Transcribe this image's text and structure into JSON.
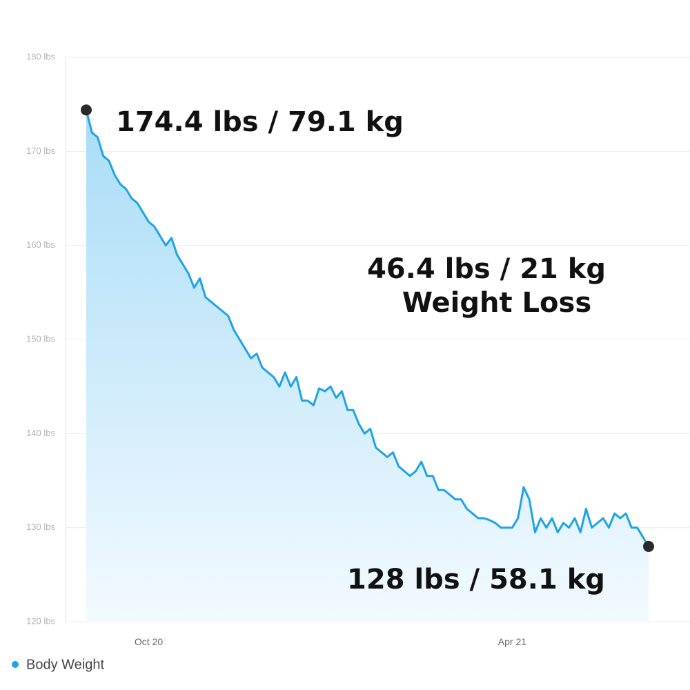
{
  "chart_data": {
    "type": "area",
    "categories": [
      null,
      null,
      null,
      null,
      null,
      null,
      null,
      null,
      null,
      null,
      null,
      "Oct 20",
      null,
      null,
      null,
      null,
      null,
      null,
      null,
      null,
      null,
      null,
      null,
      null,
      null,
      null,
      null,
      null,
      null,
      null,
      null,
      null,
      null,
      null,
      null,
      null,
      null,
      null,
      null,
      null,
      null,
      null,
      null,
      null,
      null,
      null,
      null,
      null,
      null,
      null,
      null,
      null,
      null,
      null,
      null,
      null,
      null,
      null,
      null,
      null,
      null,
      null,
      null,
      null,
      null,
      null,
      null,
      null,
      null,
      null,
      null,
      null,
      null,
      null,
      null,
      "Apr 21",
      null,
      null,
      null,
      null,
      null,
      null,
      null,
      null,
      null,
      null,
      null,
      null,
      null,
      null,
      null,
      null,
      null,
      null,
      null,
      null,
      null,
      null,
      null,
      null
    ],
    "series": [
      {
        "name": "Body Weight",
        "color": "#1ea3e6",
        "values": [
          174.4,
          172,
          171.5,
          169.5,
          169,
          167.5,
          166.5,
          166,
          165,
          164.5,
          163.5,
          162.5,
          162,
          161,
          160,
          160.8,
          159,
          158,
          157,
          155.5,
          156.5,
          154.5,
          154,
          153.5,
          153,
          152.5,
          151,
          150,
          149,
          148,
          148.5,
          147,
          146.5,
          146,
          145,
          146.5,
          145,
          146,
          143.5,
          143.5,
          143,
          144.8,
          144.5,
          145,
          143.8,
          144.5,
          142.5,
          142.5,
          141,
          140,
          140.5,
          138.5,
          138,
          137.5,
          138,
          136.5,
          136,
          135.5,
          136,
          137,
          135.5,
          135.5,
          134,
          134,
          133.5,
          133,
          133,
          132,
          131.5,
          131,
          131,
          130.8,
          130.5,
          130,
          130,
          130,
          131,
          134.3,
          133,
          129.5,
          131,
          130,
          131,
          129.5,
          130.5,
          130,
          131,
          129.5,
          132,
          130,
          130.5,
          131,
          130,
          131.5,
          131,
          131.5,
          130,
          130,
          129,
          128
        ]
      }
    ],
    "ylim": [
      120,
      180
    ],
    "yticks": [
      {
        "value": 120,
        "label": "120 lbs"
      },
      {
        "value": 130,
        "label": "130 lbs"
      },
      {
        "value": 140,
        "label": "140 lbs"
      },
      {
        "value": 150,
        "label": "150 lbs"
      },
      {
        "value": 160,
        "label": "160 lbs"
      },
      {
        "value": 170,
        "label": "170 lbs"
      },
      {
        "value": 180,
        "label": "180 lbs"
      }
    ],
    "grid": true,
    "annotations": [
      "174.4 lbs / 79.1 kg",
      "46.4 lbs / 21 kg",
      "Weight Loss",
      "128 lbs / 58.1 kg"
    ]
  }
}
